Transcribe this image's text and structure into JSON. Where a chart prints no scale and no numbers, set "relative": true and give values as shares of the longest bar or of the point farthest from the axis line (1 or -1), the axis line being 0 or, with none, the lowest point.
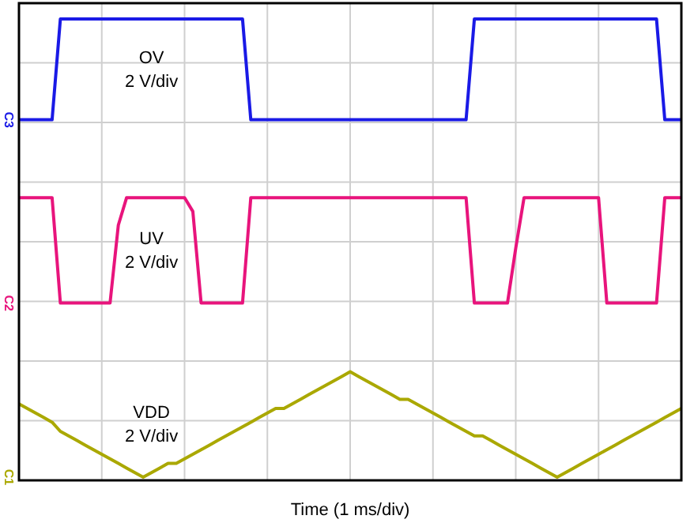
{
  "chart_data": {
    "type": "line",
    "relative": true,
    "xlabel": "Time (1 ms/div)",
    "grid": true,
    "line_style": "solid",
    "marker": "none",
    "categories": [
      null,
      null,
      null,
      null,
      null,
      null,
      null,
      null,
      null,
      null,
      null,
      null,
      null,
      null,
      null,
      null,
      null,
      null,
      null,
      null,
      null,
      null,
      null,
      null,
      null,
      null,
      null,
      null,
      null,
      null,
      null,
      null,
      null,
      null,
      null,
      null,
      null,
      null,
      null,
      null,
      null,
      null,
      null,
      null,
      null,
      null,
      null,
      null,
      null,
      null,
      null,
      null,
      null,
      null,
      null,
      null,
      null,
      null,
      null,
      null,
      null,
      null,
      null,
      null,
      null,
      null,
      null,
      null,
      null,
      null,
      null,
      null,
      null,
      null,
      null,
      null,
      null,
      null,
      null,
      null,
      null
    ],
    "series": [
      {
        "name": "OV",
        "color": "#1a1ae6",
        "values": [
          0.78,
          0.78,
          0.78,
          0.78,
          0.78,
          1,
          1,
          1,
          1,
          1,
          1,
          1,
          1,
          1,
          1,
          1,
          1,
          1,
          1,
          1,
          1,
          1,
          1,
          1,
          1,
          1,
          1,
          1,
          0.78,
          0.78,
          0.78,
          0.78,
          0.78,
          0.78,
          0.78,
          0.78,
          0.78,
          0.78,
          0.78,
          0.78,
          0.78,
          0.78,
          0.78,
          0.78,
          0.78,
          0.78,
          0.78,
          0.78,
          0.78,
          0.78,
          0.78,
          0.78,
          0.78,
          0.78,
          0.78,
          1,
          1,
          1,
          1,
          1,
          1,
          1,
          1,
          1,
          1,
          1,
          1,
          1,
          1,
          1,
          1,
          1,
          1,
          1,
          1,
          1,
          1,
          1,
          0.78,
          0.78,
          0.78
        ]
      },
      {
        "name": "UV",
        "color": "#e8147c",
        "values": [
          0.61,
          0.61,
          0.61,
          0.61,
          0.61,
          0.38,
          0.38,
          0.38,
          0.38,
          0.38,
          0.38,
          0.38,
          0.55,
          0.61,
          0.61,
          0.61,
          0.61,
          0.61,
          0.61,
          0.61,
          0.61,
          0.58,
          0.38,
          0.38,
          0.38,
          0.38,
          0.38,
          0.38,
          0.61,
          0.61,
          0.61,
          0.61,
          0.61,
          0.61,
          0.61,
          0.61,
          0.61,
          0.61,
          0.61,
          0.61,
          0.61,
          0.61,
          0.61,
          0.61,
          0.61,
          0.61,
          0.61,
          0.61,
          0.61,
          0.61,
          0.61,
          0.61,
          0.61,
          0.61,
          0.61,
          0.38,
          0.38,
          0.38,
          0.38,
          0.38,
          0.5,
          0.61,
          0.61,
          0.61,
          0.61,
          0.61,
          0.61,
          0.61,
          0.61,
          0.61,
          0.61,
          0.38,
          0.38,
          0.38,
          0.38,
          0.38,
          0.38,
          0.38,
          0.61,
          0.61,
          0.61
        ]
      },
      {
        "name": "VDD",
        "color": "#aaa800",
        "values": [
          0.16,
          0.15,
          0.14,
          0.13,
          0.12,
          0.1,
          0.09,
          0.08,
          0.07,
          0.06,
          0.05,
          0.04,
          0.03,
          0.02,
          0.01,
          0,
          0.01,
          0.02,
          0.03,
          0.03,
          0.04,
          0.05,
          0.06,
          0.07,
          0.08,
          0.09,
          0.1,
          0.11,
          0.12,
          0.13,
          0.14,
          0.15,
          0.15,
          0.16,
          0.17,
          0.18,
          0.19,
          0.2,
          0.21,
          0.22,
          0.23,
          0.22,
          0.21,
          0.2,
          0.19,
          0.18,
          0.17,
          0.17,
          0.16,
          0.15,
          0.14,
          0.13,
          0.12,
          0.11,
          0.1,
          0.09,
          0.09,
          0.08,
          0.07,
          0.06,
          0.05,
          0.04,
          0.03,
          0.02,
          0.01,
          0,
          0.01,
          0.02,
          0.03,
          0.04,
          0.05,
          0.06,
          0.07,
          0.08,
          0.09,
          0.1,
          0.11,
          0.12,
          0.13,
          0.14,
          0.15
        ]
      }
    ],
    "annotations": [
      "2 V/div",
      "2 V/div",
      "2 V/div",
      "C3",
      "C2",
      "C1"
    ]
  }
}
